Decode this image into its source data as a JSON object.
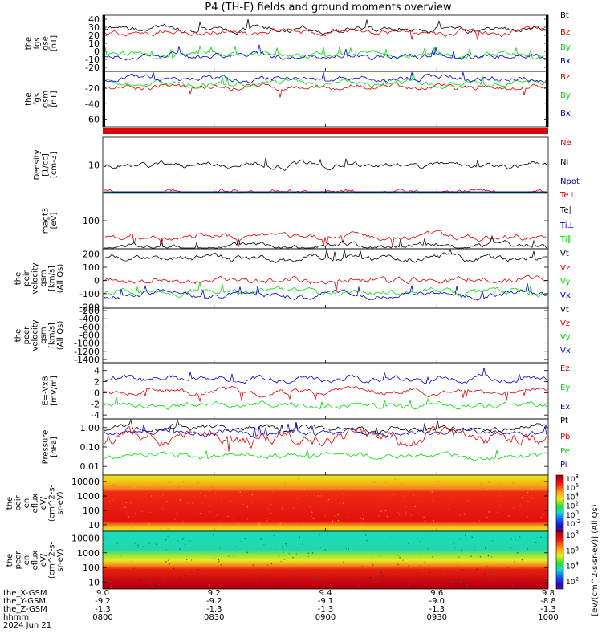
{
  "title": "P4 (TH-E) fields and ground moments overview",
  "colors": {
    "black": "#000000",
    "red": "#e00000",
    "green": "#00dd00",
    "blue": "#0000cc"
  },
  "chart_data": [
    {
      "type": "line",
      "ylabel": [
        "the",
        "fgs",
        "gse",
        "[nT]"
      ],
      "yticks": [
        "40",
        "30",
        "20",
        "10",
        "0",
        "-10",
        "-20"
      ],
      "ylim": [
        -25,
        45
      ],
      "legend": [
        {
          "name": "Bt",
          "color": "black"
        },
        {
          "name": "Bz",
          "color": "red"
        },
        {
          "name": "By",
          "color": "green"
        },
        {
          "name": "Bx",
          "color": "blue"
        }
      ],
      "series": [
        {
          "name": "Bt",
          "color": "black",
          "level": 28
        },
        {
          "name": "Bz",
          "color": "red",
          "level": 24
        },
        {
          "name": "By",
          "color": "green",
          "level": -4
        },
        {
          "name": "Bx",
          "color": "blue",
          "level": -6
        }
      ]
    },
    {
      "type": "line",
      "ylabel": [
        "the",
        "fgs",
        "gsm",
        "[nT]"
      ],
      "yticks": [
        "-20",
        "-40",
        "-60"
      ],
      "ylim": [
        -70,
        2
      ],
      "legend": [
        {
          "name": "Bz",
          "color": "red"
        },
        {
          "name": "By",
          "color": "green"
        },
        {
          "name": "Bx",
          "color": "blue"
        }
      ],
      "series": [
        {
          "name": "Bz",
          "color": "red",
          "level": -18
        },
        {
          "name": "By",
          "color": "green",
          "level": -14
        },
        {
          "name": "Bx",
          "color": "blue",
          "level": -7
        }
      ]
    },
    {
      "type": "line",
      "ylabel": [
        "Density",
        "[1/cc]",
        "[cm-3]"
      ],
      "yticks": [
        "10"
      ],
      "ylog": true,
      "legend": [
        {
          "name": "Ne",
          "color": "red"
        },
        {
          "name": "Ni",
          "color": "black"
        },
        {
          "name": "Npot",
          "color": "blue"
        }
      ],
      "series": [
        {
          "name": "Ni",
          "color": "black",
          "level": 10
        },
        {
          "name": "Ne",
          "color": "red",
          "level": 3.5
        },
        {
          "name": "Npot",
          "color": "blue",
          "level": 2.5
        }
      ]
    },
    {
      "type": "line",
      "ylabel": [
        "magt3",
        "[eV]"
      ],
      "yticks": [
        "100"
      ],
      "ylog": true,
      "legend": [
        {
          "name": "Te⊥",
          "color": "red"
        },
        {
          "name": "Te∥",
          "color": "black"
        },
        {
          "name": "Ti⊥",
          "color": "blue"
        },
        {
          "name": "Ti∥",
          "color": "green"
        }
      ],
      "series": [
        {
          "name": "Ti⊥",
          "color": "blue",
          "level": 1800
        },
        {
          "name": "Ti∥",
          "color": "green",
          "level": 900
        },
        {
          "name": "Te⊥",
          "color": "red",
          "level": 55
        },
        {
          "name": "Te∥",
          "color": "black",
          "level": 40
        }
      ]
    },
    {
      "type": "line",
      "ylabel": [
        "the",
        "peir",
        "velocity",
        "gsm",
        "[km/s]",
        "(All Qs)"
      ],
      "yticks": [
        "200",
        "100",
        "0",
        "-100",
        "-200"
      ],
      "ylim": [
        -210,
        240
      ],
      "legend": [
        {
          "name": "Vt",
          "color": "black"
        },
        {
          "name": "Vz",
          "color": "red"
        },
        {
          "name": "Vy",
          "color": "green"
        },
        {
          "name": "Vx",
          "color": "blue"
        }
      ],
      "series": [
        {
          "name": "Vt",
          "color": "black",
          "level": 170
        },
        {
          "name": "Vz",
          "color": "red",
          "level": 0
        },
        {
          "name": "Vy",
          "color": "green",
          "level": -90
        },
        {
          "name": "Vx",
          "color": "blue",
          "level": -110
        }
      ]
    },
    {
      "type": "line",
      "ylabel": [
        "the",
        "peer",
        "velocity",
        "gsm",
        "[km/s]",
        "(All Qs)"
      ],
      "yticks": [
        "-200",
        "-400",
        "-600",
        "-800",
        "-1000",
        "-1200",
        "-1400"
      ],
      "ylim": [
        -1480,
        -140
      ],
      "legend": [
        {
          "name": "Vt",
          "color": "black"
        },
        {
          "name": "Vz",
          "color": "red"
        },
        {
          "name": "Vy",
          "color": "green"
        },
        {
          "name": "Vx",
          "color": "blue"
        }
      ],
      "series": []
    },
    {
      "type": "line",
      "ylabel": [
        "E=-VxB",
        "[mV/m]"
      ],
      "yticks": [
        "4",
        "2",
        "0",
        "-2",
        "-4"
      ],
      "ylim": [
        -4.7,
        5.4
      ],
      "legend": [
        {
          "name": "Ez",
          "color": "red"
        },
        {
          "name": "Ey",
          "color": "green"
        },
        {
          "name": "Ex",
          "color": "blue"
        }
      ],
      "series": [
        {
          "name": "Ex",
          "color": "blue",
          "level": 2.5
        },
        {
          "name": "Ez",
          "color": "red",
          "level": 0.2
        },
        {
          "name": "Ey",
          "color": "green",
          "level": -2.2
        }
      ]
    },
    {
      "type": "line",
      "ylabel": [
        "Pressure",
        "[nPa]"
      ],
      "yticks": [
        "1.00",
        "0.10",
        "0.01"
      ],
      "ylog": true,
      "legend": [
        {
          "name": "Pt",
          "color": "black"
        },
        {
          "name": "Pb",
          "color": "red"
        },
        {
          "name": "Pe",
          "color": "green"
        },
        {
          "name": "Pi",
          "color": "blue"
        }
      ],
      "series": [
        {
          "name": "Pt",
          "color": "black",
          "level": 0.9
        },
        {
          "name": "Pi",
          "color": "blue",
          "level": 0.55
        },
        {
          "name": "Pb",
          "color": "red",
          "level": 0.3
        },
        {
          "name": "Pe",
          "color": "green",
          "level": 0.035
        }
      ]
    },
    {
      "type": "heatmap",
      "ylabel": [
        "the",
        "peir",
        "en",
        "eflux",
        "eV/",
        "(cm^2-s-",
        "sr-eV)"
      ],
      "yticks": [
        "10000",
        "1000",
        "100",
        "10"
      ],
      "ylog": true,
      "colorbar_ticks": [
        "10^8",
        "10^6",
        "10^4",
        "10^2",
        "10^0",
        "10^-2"
      ]
    },
    {
      "type": "heatmap",
      "ylabel": [
        "the",
        "peer",
        "en",
        "eflux",
        "eV/",
        "(cm^2-s-",
        "sr-eV)"
      ],
      "yticks": [
        "10000",
        "1000",
        "100",
        "10"
      ],
      "ylog": true,
      "colorbar_ticks": [
        "10^8",
        "10^6",
        "10^4",
        "10^2"
      ]
    }
  ],
  "colorbar_label": "[eV/(cm^2-s-sr-eV)] (All Qs)",
  "xaxis": {
    "row_labels": [
      "the_X-GSM",
      "the_Y-GSM",
      "the_Z-GSM",
      "hhmm",
      "2024 Jun 21"
    ],
    "ticks": [
      {
        "x": "9.0",
        "y": "-9.2",
        "z": "-1.3",
        "hhmm": "0800"
      },
      {
        "x": "9.2",
        "y": "-9.2",
        "z": "-1.3",
        "hhmm": "0830"
      },
      {
        "x": "9.4",
        "y": "-9.1",
        "z": "-1.3",
        "hhmm": "0900"
      },
      {
        "x": "9.6",
        "y": "-9.0",
        "z": "-1.3",
        "hhmm": "0930"
      },
      {
        "x": "9.8",
        "y": "-8.8",
        "z": "-1.3",
        "hhmm": "1000"
      }
    ]
  }
}
